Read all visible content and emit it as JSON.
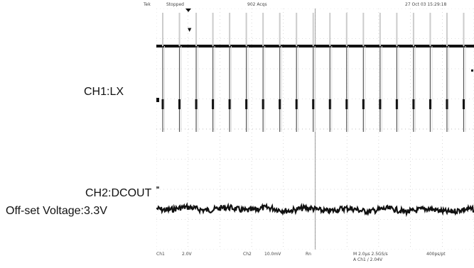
{
  "labels": {
    "ch1": "CH1:LX",
    "ch2": "CH2:DCOUT",
    "offset": "Off-set Voltage:3.3V"
  },
  "scope": {
    "brand": "Tek",
    "status": "Stopped",
    "acquisitions": "902 Acqs",
    "datetime": "27 Oct 03 15:29:18",
    "readouts": {
      "ch1_label": "Ch1",
      "ch1_scale": "2.0V",
      "ch2_label": "Ch2",
      "ch2_scale": "10.0mV",
      "rn": "Rn",
      "timebase": "M 2.0μs 2.5GS/s",
      "trigger": "A Ch1 / 2.04V",
      "rate": "400ps/pt"
    }
  },
  "colors": {
    "trace": "#111111",
    "grid": "#bdbdbd",
    "labels": "#111111"
  }
}
